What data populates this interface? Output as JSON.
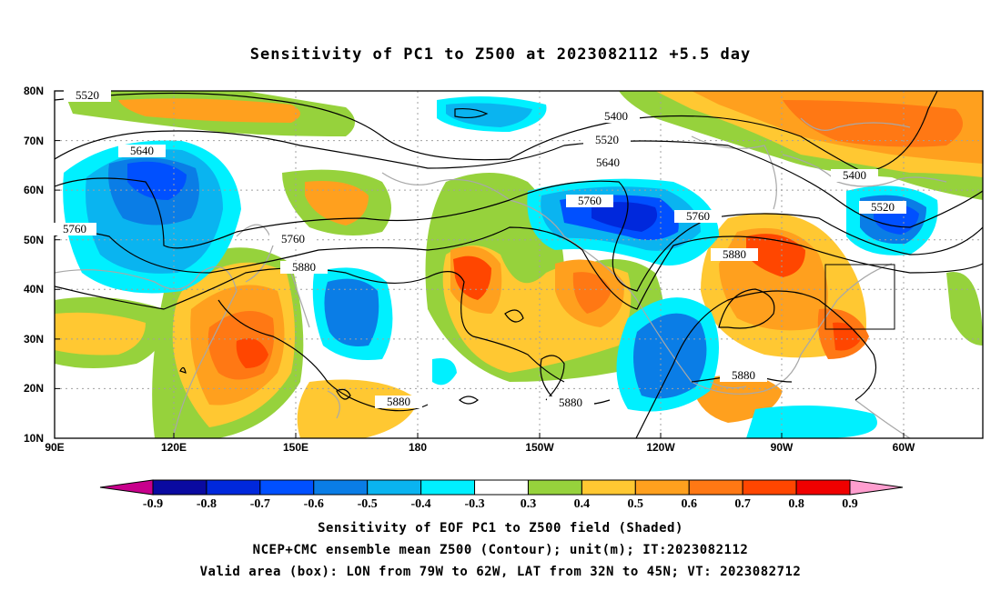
{
  "title": "Sensitivity of PC1 to Z500 at 2023082112 +5.5 day",
  "lat_labels": [
    "80N",
    "70N",
    "60N",
    "50N",
    "40N",
    "30N",
    "20N",
    "10N"
  ],
  "lon_labels": [
    "90E",
    "120E",
    "150E",
    "180",
    "150W",
    "120W",
    "90W",
    "60W"
  ],
  "contour_labels": [
    {
      "text": "5520"
    },
    {
      "text": "5640"
    },
    {
      "text": "5760"
    },
    {
      "text": "5760"
    },
    {
      "text": "5880"
    },
    {
      "text": "5400"
    },
    {
      "text": "5520"
    },
    {
      "text": "5640"
    },
    {
      "text": "5760"
    },
    {
      "text": "5760"
    },
    {
      "text": "5880"
    },
    {
      "text": "5880"
    },
    {
      "text": "5880"
    },
    {
      "text": "5880"
    },
    {
      "text": "5400"
    },
    {
      "text": "5520"
    }
  ],
  "colorbar": {
    "colors": [
      "#c8008c",
      "#0a0aa0",
      "#0028dc",
      "#0050ff",
      "#0a7de6",
      "#0ab4f0",
      "#00f0ff",
      "#ffffff",
      "#96d23c",
      "#ffc832",
      "#ffa01e",
      "#ff7814",
      "#ff4600",
      "#f00000",
      "#ff9ecf"
    ],
    "labels": [
      "-0.9",
      "-0.8",
      "-0.7",
      "-0.6",
      "-0.5",
      "-0.4",
      "-0.3",
      "0.3",
      "0.4",
      "0.5",
      "0.6",
      "0.7",
      "0.8",
      "0.9"
    ]
  },
  "footer": {
    "line1": "Sensitivity of EOF PC1 to Z500 field (Shaded)",
    "line2": "NCEP+CMC ensemble mean Z500 (Contour); unit(m); IT:2023082112",
    "line3": "Valid area (box): LON from 79W to 62W, LAT from 32N to 45N; VT: 2023082712"
  },
  "colors": {
    "coast": "#a8a8a8",
    "grid": "#a0a0a0",
    "contour": "#000000"
  }
}
